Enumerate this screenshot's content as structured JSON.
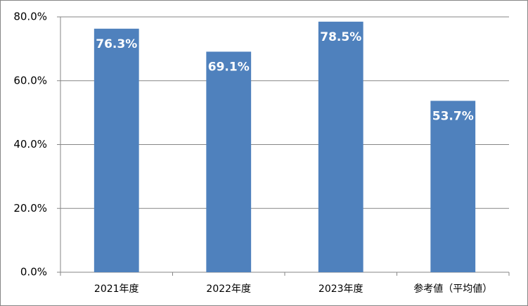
{
  "chart_data": {
    "type": "bar",
    "categories": [
      "2021年度",
      "2022年度",
      "2023年度",
      "参考値（平均値）"
    ],
    "values": [
      76.3,
      69.1,
      78.5,
      53.7
    ],
    "value_labels": [
      "76.3%",
      "69.1%",
      "78.5%",
      "53.7%"
    ],
    "color": "#4f81bd",
    "ylim": [
      0,
      80
    ],
    "yticks": [
      {
        "value": 0,
        "label": "0.0%"
      },
      {
        "value": 20,
        "label": "20.0%"
      },
      {
        "value": 40,
        "label": "40.0%"
      },
      {
        "value": 60,
        "label": "60.0%"
      },
      {
        "value": 80,
        "label": "80.0%"
      }
    ],
    "grid": true
  }
}
